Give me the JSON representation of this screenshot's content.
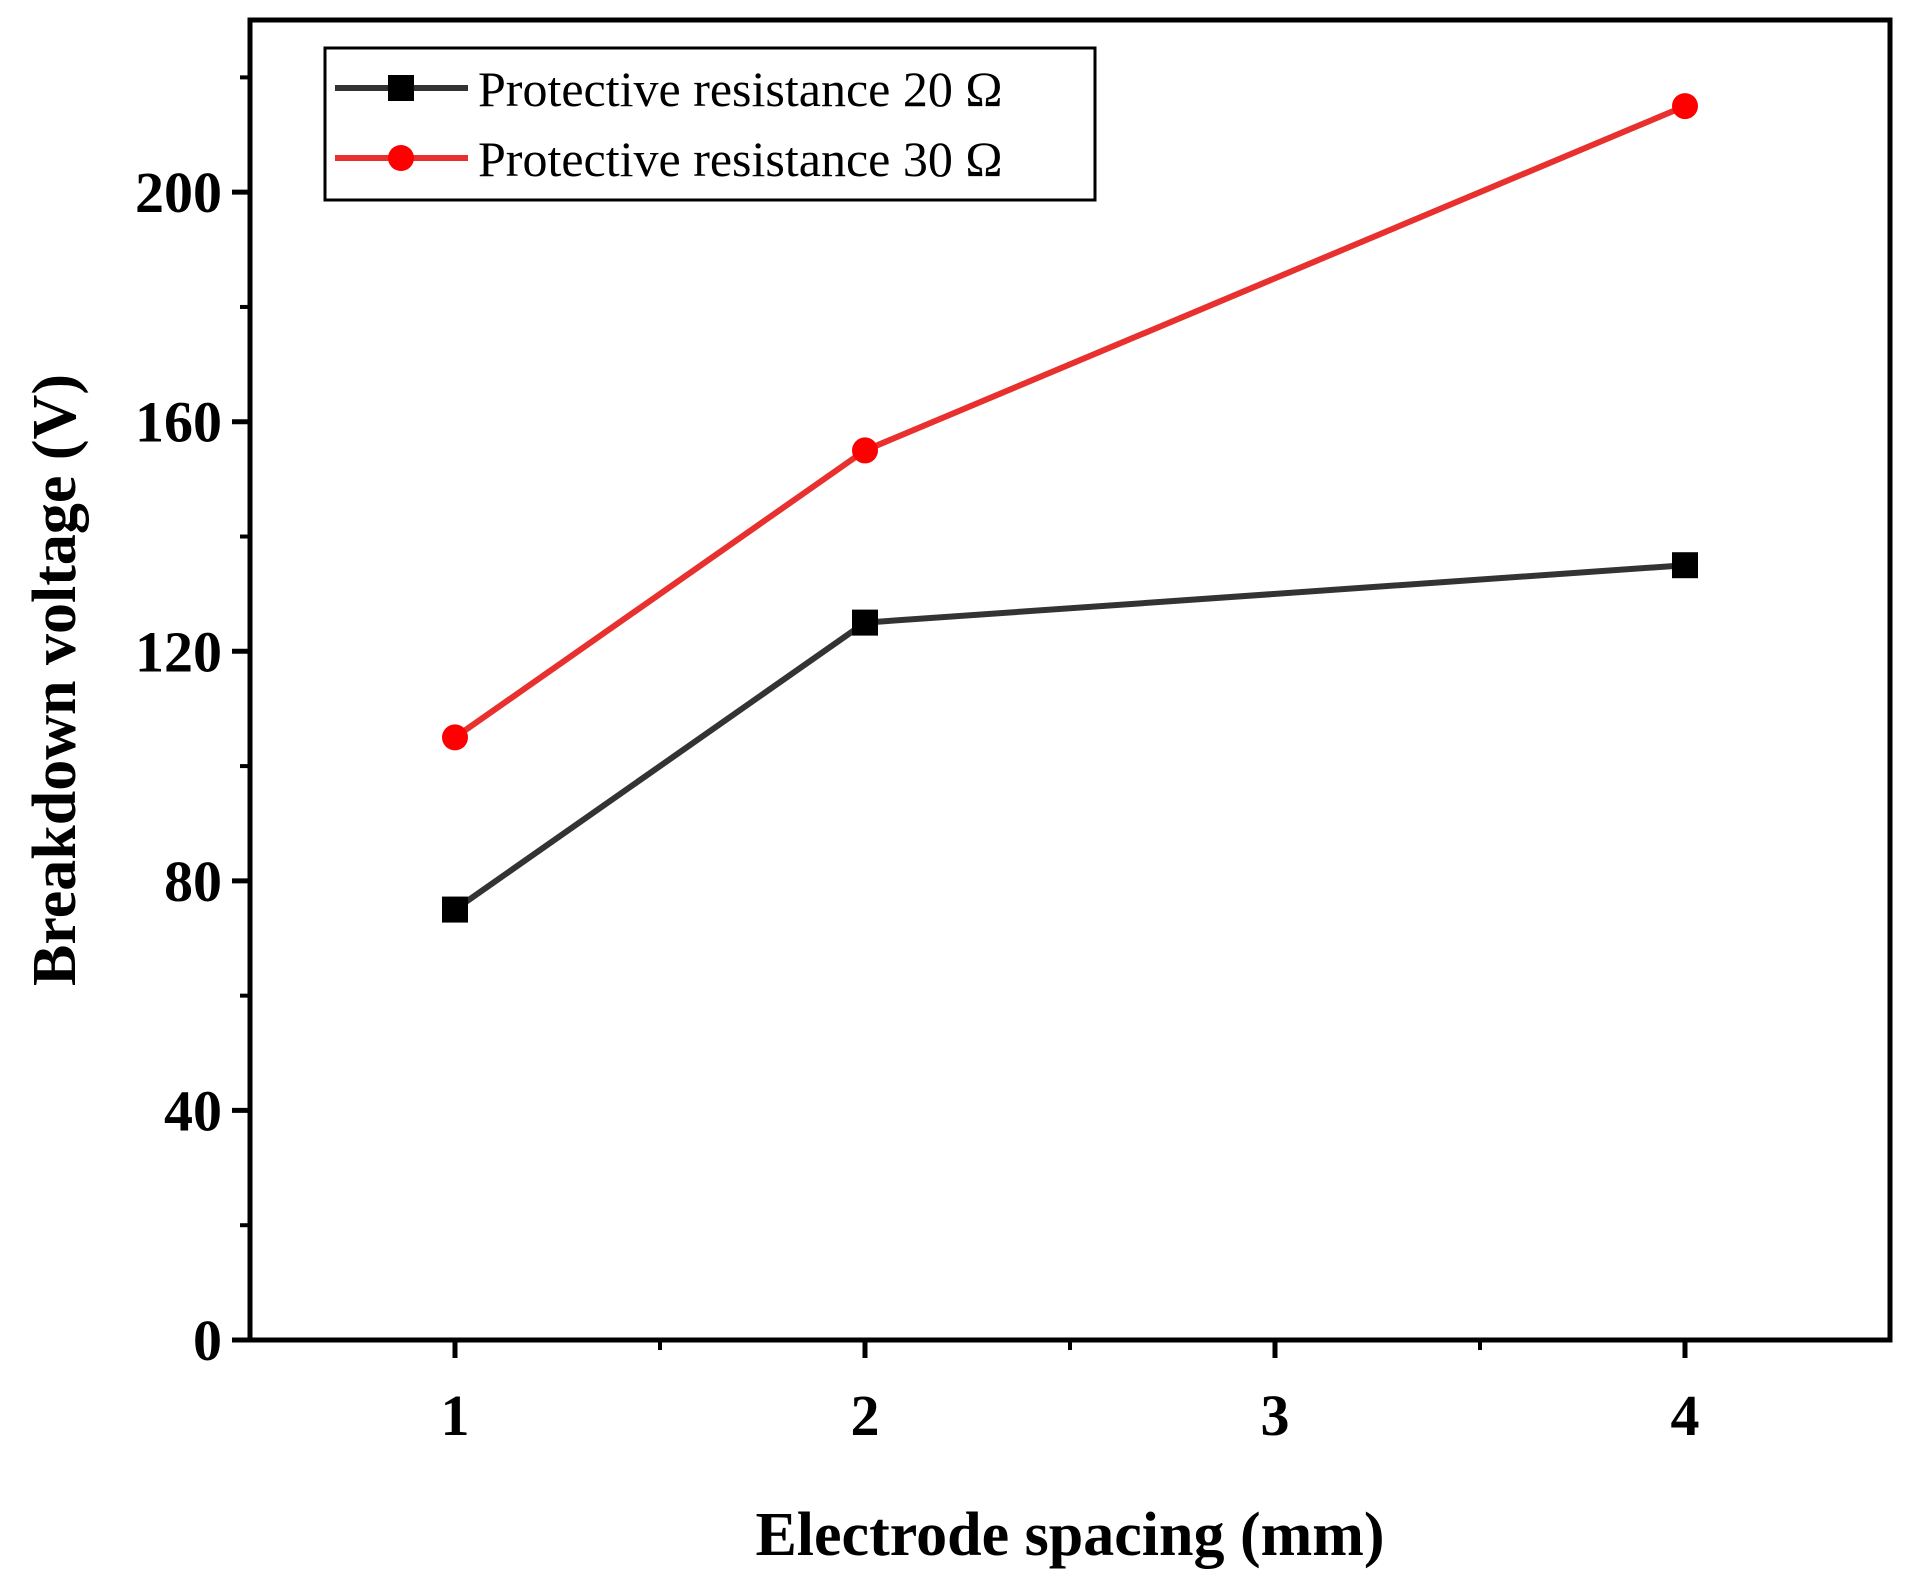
{
  "chart_data": {
    "type": "line",
    "title": "",
    "xlabel": "Electrode spacing (mm)",
    "ylabel": "Breakdown voltage (V)",
    "x": [
      1,
      2,
      4
    ],
    "xlim": [
      0.5,
      4.5
    ],
    "ylim": [
      0,
      230
    ],
    "xticks": [
      1,
      2,
      3,
      4
    ],
    "xtick_labels": [
      "1",
      "2",
      "3",
      "4"
    ],
    "yticks": [
      0,
      40,
      80,
      120,
      160,
      200
    ],
    "ytick_labels": [
      "0",
      "40",
      "80",
      "120",
      "160",
      "200"
    ],
    "grid": false,
    "legend_position": "top-left",
    "series": [
      {
        "name": "Protective resistance 20 Ω",
        "color": "#333333",
        "marker_color": "#000000",
        "marker": "square",
        "values": [
          75,
          125,
          135
        ]
      },
      {
        "name": "Protective resistance 30 Ω",
        "color": "#e8312f",
        "marker_color": "#ff0000",
        "marker": "circle",
        "values": [
          105,
          155,
          215
        ]
      }
    ]
  }
}
